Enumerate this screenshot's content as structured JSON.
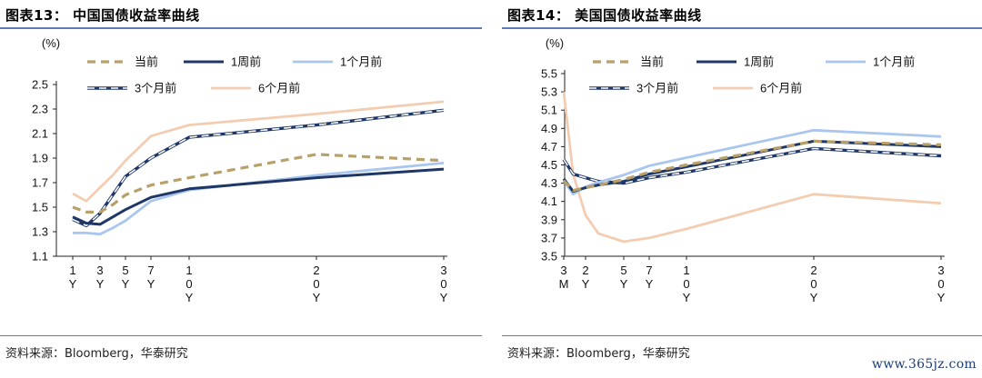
{
  "panels": [
    {
      "title": "图表13：  中国国债收益率曲线",
      "source": "资料来源：Bloomberg，华泰研究"
    },
    {
      "title": "图表14：  美国国债收益率曲线",
      "source": "资料来源：Bloomberg，华泰研究"
    }
  ],
  "watermark": "www.365jz.com",
  "chart_data": [
    {
      "type": "line",
      "yunit": "(%)",
      "ylim": [
        1.1,
        2.5
      ],
      "yticks": [
        "1.1",
        "1.3",
        "1.5",
        "1.7",
        "1.9",
        "2.1",
        "2.3",
        "2.5"
      ],
      "x_scale": "maturity-years (non-linear spacing)",
      "x": [
        1,
        2,
        3,
        4,
        5,
        7,
        10,
        20,
        30
      ],
      "tick_years": [
        1,
        3,
        5,
        7,
        10,
        20,
        30
      ],
      "tick_labels": [
        "1\nY",
        "3\nY",
        "5\nY",
        "7\nY",
        "1\n0\nY",
        "2\n0\nY",
        "3\n0\nY"
      ],
      "grid": false,
      "legend_placement": "top",
      "series": [
        {
          "name": "当前",
          "style": "dashed",
          "color": "#b8a06a",
          "values": [
            1.5,
            1.46,
            1.46,
            1.52,
            1.6,
            1.68,
            1.74,
            1.93,
            1.88
          ]
        },
        {
          "name": "1周前",
          "style": "solid",
          "color": "#1f3766",
          "values": [
            1.42,
            1.37,
            1.36,
            1.42,
            1.48,
            1.58,
            1.65,
            1.74,
            1.81
          ]
        },
        {
          "name": "1个月前",
          "style": "solid",
          "color": "#a9c6ef",
          "values": [
            1.29,
            1.29,
            1.28,
            1.33,
            1.39,
            1.55,
            1.64,
            1.76,
            1.86
          ]
        },
        {
          "name": "3个月前",
          "style": "outlined-dashed",
          "color": "#1f3766",
          "values": [
            1.4,
            1.35,
            1.45,
            1.6,
            1.75,
            1.9,
            2.07,
            2.17,
            2.29
          ]
        },
        {
          "name": "6个月前",
          "style": "solid",
          "color": "#f3cdb1",
          "values": [
            1.61,
            1.55,
            1.66,
            1.76,
            1.88,
            2.08,
            2.17,
            2.26,
            2.36
          ]
        }
      ]
    },
    {
      "type": "line",
      "yunit": "(%)",
      "ylim": [
        3.5,
        5.5
      ],
      "yticks": [
        "3.5",
        "3.7",
        "3.9",
        "4.1",
        "4.3",
        "4.5",
        "4.7",
        "4.9",
        "5.1",
        "5.3",
        "5.5"
      ],
      "x_scale": "maturity-years (non-linear spacing)",
      "x": [
        0.25,
        1,
        2,
        3,
        5,
        7,
        10,
        20,
        30
      ],
      "tick_years": [
        0.25,
        2,
        5,
        7,
        10,
        20,
        30
      ],
      "tick_labels": [
        "3\nM",
        "2\nY",
        "5\nY",
        "7\nY",
        "1\n0\nY",
        "2\n0\nY",
        "3\n0\nY"
      ],
      "grid": false,
      "legend_placement": "top",
      "series": [
        {
          "name": "当前",
          "style": "dashed",
          "color": "#b8a06a",
          "values": [
            4.33,
            4.22,
            4.25,
            4.28,
            4.34,
            4.42,
            4.5,
            4.76,
            4.72
          ]
        },
        {
          "name": "1周前",
          "style": "solid",
          "color": "#1f3766",
          "values": [
            4.35,
            4.21,
            4.25,
            4.28,
            4.32,
            4.4,
            4.48,
            4.76,
            4.7
          ]
        },
        {
          "name": "1个月前",
          "style": "solid",
          "color": "#a9c6ef",
          "values": [
            4.33,
            4.18,
            4.26,
            4.31,
            4.39,
            4.49,
            4.58,
            4.88,
            4.81
          ]
        },
        {
          "name": "3个月前",
          "style": "outlined-dashed",
          "color": "#1f3766",
          "values": [
            4.56,
            4.4,
            4.36,
            4.32,
            4.3,
            4.36,
            4.42,
            4.68,
            4.6
          ]
        },
        {
          "name": "6个月前",
          "style": "solid",
          "color": "#f3cdb1",
          "values": [
            5.3,
            4.4,
            3.95,
            3.75,
            3.66,
            3.7,
            3.8,
            4.18,
            4.08
          ]
        }
      ]
    }
  ]
}
